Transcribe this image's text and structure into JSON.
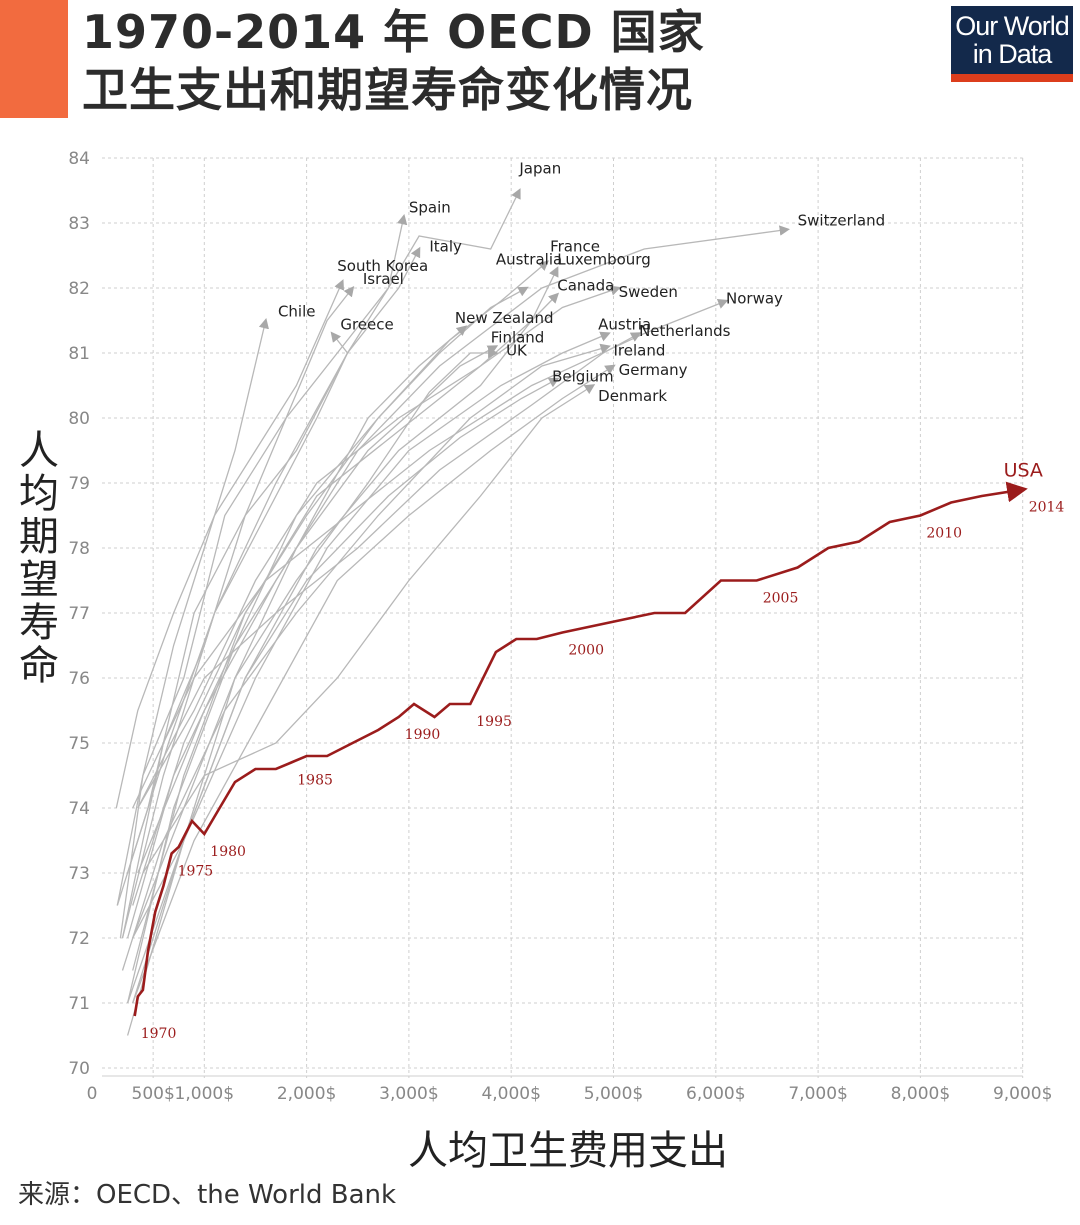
{
  "header": {
    "title_line1": "1970-2014 年 OECD 国家",
    "title_line2": "卫生支出和期望寿命变化情况",
    "logo_line1": "Our World",
    "logo_line2": "in Data"
  },
  "source": "来源：OECD、the World Bank",
  "colors": {
    "accent": "#f26b3f",
    "logo_bg": "#13294b",
    "logo_stripe": "#dc3d1c",
    "usa": "#9b1c1c",
    "others": "#b4b4b4"
  },
  "chart_data": {
    "type": "line",
    "xlabel": "人均卫生费用支出",
    "ylabel": "人均期望寿命",
    "xlim": [
      0,
      9000
    ],
    "ylim": [
      70,
      84
    ],
    "x_ticks": [
      "0",
      "500$",
      "1,000$",
      "2,000$",
      "3,000$",
      "4,000$",
      "5,000$",
      "6,000$",
      "7,000$",
      "8,000$",
      "9,000$"
    ],
    "x_tick_values": [
      0,
      500,
      1000,
      2000,
      3000,
      4000,
      5000,
      6000,
      7000,
      8000,
      9000
    ],
    "y_ticks": [
      70,
      71,
      72,
      73,
      74,
      75,
      76,
      77,
      78,
      79,
      80,
      81,
      82,
      83,
      84
    ],
    "grid": true,
    "series": [
      {
        "name": "USA",
        "highlight": true,
        "points": [
          [
            320,
            70.8
          ],
          [
            350,
            71.1
          ],
          [
            400,
            71.2
          ],
          [
            450,
            71.8
          ],
          [
            520,
            72.4
          ],
          [
            600,
            72.8
          ],
          [
            680,
            73.3
          ],
          [
            750,
            73.4
          ],
          [
            880,
            73.8
          ],
          [
            1000,
            73.6
          ],
          [
            1150,
            74.0
          ],
          [
            1300,
            74.4
          ],
          [
            1500,
            74.6
          ],
          [
            1700,
            74.6
          ],
          [
            1850,
            74.7
          ],
          [
            2000,
            74.8
          ],
          [
            2200,
            74.8
          ],
          [
            2450,
            75.0
          ],
          [
            2700,
            75.2
          ],
          [
            2900,
            75.4
          ],
          [
            3050,
            75.6
          ],
          [
            3250,
            75.4
          ],
          [
            3400,
            75.6
          ],
          [
            3600,
            75.6
          ],
          [
            3850,
            76.4
          ],
          [
            4050,
            76.6
          ],
          [
            4250,
            76.6
          ],
          [
            4500,
            76.7
          ],
          [
            4800,
            76.8
          ],
          [
            5100,
            76.9
          ],
          [
            5400,
            77.0
          ],
          [
            5700,
            77.0
          ],
          [
            6050,
            77.5
          ],
          [
            6400,
            77.5
          ],
          [
            6800,
            77.7
          ],
          [
            7100,
            78.0
          ],
          [
            7400,
            78.1
          ],
          [
            7700,
            78.4
          ],
          [
            8000,
            78.5
          ],
          [
            8300,
            78.7
          ],
          [
            8600,
            78.8
          ],
          [
            9000,
            78.9
          ]
        ],
        "year_labels": [
          {
            "text": "1970",
            "x": 320,
            "y": 70.8
          },
          {
            "text": "1975",
            "x": 680,
            "y": 73.3
          },
          {
            "text": "1980",
            "x": 1000,
            "y": 73.6
          },
          {
            "text": "1985",
            "x": 1850,
            "y": 74.7
          },
          {
            "text": "1990",
            "x": 2900,
            "y": 75.4
          },
          {
            "text": "1995",
            "x": 3600,
            "y": 75.6
          },
          {
            "text": "2000",
            "x": 4500,
            "y": 76.7
          },
          {
            "text": "2005",
            "x": 6400,
            "y": 77.5
          },
          {
            "text": "2010",
            "x": 8000,
            "y": 78.5
          },
          {
            "text": "2014",
            "x": 9000,
            "y": 78.9
          }
        ]
      },
      {
        "name": "Japan",
        "points": [
          [
            180,
            72.0
          ],
          [
            400,
            74.5
          ],
          [
            800,
            76.0
          ],
          [
            1200,
            78.5
          ],
          [
            1800,
            80.0
          ],
          [
            2300,
            81.0
          ],
          [
            2800,
            82.0
          ],
          [
            3100,
            82.8
          ],
          [
            3800,
            82.6
          ],
          [
            4080,
            83.5
          ]
        ]
      },
      {
        "name": "Spain",
        "points": [
          [
            150,
            72.5
          ],
          [
            450,
            74.0
          ],
          [
            900,
            77.0
          ],
          [
            1400,
            78.5
          ],
          [
            1900,
            79.5
          ],
          [
            2400,
            81.0
          ],
          [
            2800,
            82.0
          ],
          [
            2950,
            83.1
          ]
        ]
      },
      {
        "name": "Italy",
        "points": [
          [
            200,
            72.0
          ],
          [
            600,
            74.5
          ],
          [
            1100,
            77.0
          ],
          [
            1700,
            79.0
          ],
          [
            2400,
            81.0
          ],
          [
            2900,
            82.0
          ],
          [
            3100,
            82.6
          ]
        ]
      },
      {
        "name": "South Korea",
        "points": [
          [
            140,
            74.0
          ],
          [
            350,
            75.5
          ],
          [
            700,
            77.0
          ],
          [
            1100,
            78.5
          ],
          [
            1500,
            79.5
          ],
          [
            1900,
            80.5
          ],
          [
            2350,
            82.1
          ]
        ]
      },
      {
        "name": "Israel",
        "points": [
          [
            200,
            72.0
          ],
          [
            600,
            75.0
          ],
          [
            1000,
            76.5
          ],
          [
            1400,
            78.5
          ],
          [
            1800,
            80.0
          ],
          [
            2200,
            81.5
          ],
          [
            2450,
            82.0
          ]
        ]
      },
      {
        "name": "Chile",
        "points": [
          [
            150,
            72.5
          ],
          [
            400,
            74.5
          ],
          [
            700,
            76.5
          ],
          [
            1000,
            78.0
          ],
          [
            1300,
            79.5
          ],
          [
            1600,
            81.5
          ]
        ]
      },
      {
        "name": "Greece",
        "points": [
          [
            250,
            73.0
          ],
          [
            650,
            75.0
          ],
          [
            1100,
            77.0
          ],
          [
            1600,
            78.5
          ],
          [
            2100,
            80.0
          ],
          [
            2400,
            81.0
          ],
          [
            2250,
            81.3
          ]
        ]
      },
      {
        "name": "Australia",
        "points": [
          [
            300,
            71.5
          ],
          [
            800,
            74.5
          ],
          [
            1400,
            77.0
          ],
          [
            2000,
            78.5
          ],
          [
            2700,
            80.0
          ],
          [
            3300,
            81.0
          ],
          [
            3800,
            81.7
          ],
          [
            4150,
            82.0
          ]
        ]
      },
      {
        "name": "France",
        "points": [
          [
            250,
            72.0
          ],
          [
            700,
            74.5
          ],
          [
            1300,
            76.5
          ],
          [
            1900,
            78.5
          ],
          [
            2700,
            80.0
          ],
          [
            3400,
            81.2
          ],
          [
            3900,
            81.8
          ],
          [
            4350,
            82.4
          ]
        ]
      },
      {
        "name": "Luxembourg",
        "points": [
          [
            300,
            71.0
          ],
          [
            800,
            73.5
          ],
          [
            1400,
            76.0
          ],
          [
            2100,
            78.0
          ],
          [
            2900,
            79.5
          ],
          [
            3700,
            80.5
          ],
          [
            4200,
            81.5
          ],
          [
            4450,
            82.3
          ]
        ]
      },
      {
        "name": "Canada",
        "points": [
          [
            300,
            72.5
          ],
          [
            800,
            75.0
          ],
          [
            1400,
            77.0
          ],
          [
            2100,
            78.8
          ],
          [
            2900,
            79.8
          ],
          [
            3700,
            80.8
          ],
          [
            4200,
            81.5
          ],
          [
            4450,
            81.9
          ]
        ]
      },
      {
        "name": "Sweden",
        "points": [
          [
            350,
            74.0
          ],
          [
            900,
            75.5
          ],
          [
            1500,
            77.5
          ],
          [
            2100,
            79.0
          ],
          [
            2900,
            80.0
          ],
          [
            3700,
            80.8
          ],
          [
            4500,
            81.7
          ],
          [
            5050,
            82.0
          ]
        ]
      },
      {
        "name": "Switzerland",
        "points": [
          [
            350,
            73.0
          ],
          [
            1000,
            75.5
          ],
          [
            1700,
            77.5
          ],
          [
            2500,
            79.5
          ],
          [
            3300,
            80.8
          ],
          [
            4300,
            82.0
          ],
          [
            5300,
            82.6
          ],
          [
            6700,
            82.9
          ]
        ]
      },
      {
        "name": "Norway",
        "points": [
          [
            300,
            74.0
          ],
          [
            900,
            76.0
          ],
          [
            1600,
            77.5
          ],
          [
            2400,
            78.5
          ],
          [
            3200,
            79.5
          ],
          [
            4200,
            80.5
          ],
          [
            5300,
            81.3
          ],
          [
            6100,
            81.8
          ]
        ]
      },
      {
        "name": "New Zealand",
        "points": [
          [
            300,
            72.0
          ],
          [
            800,
            73.5
          ],
          [
            1300,
            76.0
          ],
          [
            1900,
            78.0
          ],
          [
            2600,
            80.0
          ],
          [
            3100,
            80.8
          ],
          [
            3550,
            81.4
          ]
        ]
      },
      {
        "name": "Finland",
        "points": [
          [
            250,
            71.0
          ],
          [
            700,
            74.0
          ],
          [
            1300,
            76.5
          ],
          [
            1900,
            78.0
          ],
          [
            2600,
            79.5
          ],
          [
            3100,
            80.2
          ],
          [
            3500,
            80.8
          ],
          [
            3850,
            81.1
          ]
        ]
      },
      {
        "name": "UK",
        "points": [
          [
            300,
            72.0
          ],
          [
            800,
            74.0
          ],
          [
            1300,
            76.0
          ],
          [
            1900,
            77.5
          ],
          [
            2600,
            79.0
          ],
          [
            3200,
            80.4
          ],
          [
            3600,
            81.0
          ],
          [
            3850,
            81.0
          ]
        ]
      },
      {
        "name": "Austria",
        "points": [
          [
            250,
            70.5
          ],
          [
            800,
            73.5
          ],
          [
            1500,
            76.0
          ],
          [
            2200,
            78.0
          ],
          [
            3000,
            79.5
          ],
          [
            3900,
            80.5
          ],
          [
            4500,
            81.0
          ],
          [
            4950,
            81.3
          ]
        ]
      },
      {
        "name": "Netherlands",
        "points": [
          [
            350,
            74.0
          ],
          [
            1000,
            76.0
          ],
          [
            1700,
            77.0
          ],
          [
            2500,
            78.0
          ],
          [
            3300,
            79.2
          ],
          [
            4200,
            80.2
          ],
          [
            4900,
            81.0
          ],
          [
            5250,
            81.3
          ]
        ]
      },
      {
        "name": "Ireland",
        "points": [
          [
            200,
            71.5
          ],
          [
            600,
            73.5
          ],
          [
            1200,
            75.5
          ],
          [
            1900,
            77.0
          ],
          [
            2700,
            78.5
          ],
          [
            3600,
            80.0
          ],
          [
            4300,
            80.8
          ],
          [
            4950,
            81.1
          ]
        ]
      },
      {
        "name": "Germany",
        "points": [
          [
            300,
            71.0
          ],
          [
            900,
            73.5
          ],
          [
            1600,
            75.5
          ],
          [
            2300,
            77.5
          ],
          [
            3000,
            78.5
          ],
          [
            3800,
            79.5
          ],
          [
            4500,
            80.3
          ],
          [
            5000,
            80.8
          ]
        ]
      },
      {
        "name": "Belgium",
        "points": [
          [
            250,
            71.0
          ],
          [
            800,
            73.5
          ],
          [
            1400,
            76.0
          ],
          [
            2000,
            77.5
          ],
          [
            2800,
            78.8
          ],
          [
            3500,
            79.7
          ],
          [
            4100,
            80.3
          ],
          [
            4450,
            80.6
          ]
        ]
      },
      {
        "name": "Denmark",
        "points": [
          [
            400,
            73.0
          ],
          [
            1000,
            74.5
          ],
          [
            1700,
            75.0
          ],
          [
            2300,
            76.0
          ],
          [
            3000,
            77.5
          ],
          [
            3700,
            78.8
          ],
          [
            4300,
            80.0
          ],
          [
            4800,
            80.5
          ]
        ]
      }
    ],
    "country_labels": [
      {
        "name": "Japan",
        "x": 4080,
        "y": 83.7
      },
      {
        "name": "Spain",
        "x": 3000,
        "y": 83.1
      },
      {
        "name": "Italy",
        "x": 3200,
        "y": 82.5
      },
      {
        "name": "South Korea",
        "x": 2300,
        "y": 82.2
      },
      {
        "name": "Israel",
        "x": 2550,
        "y": 82.0
      },
      {
        "name": "Chile",
        "x": 1720,
        "y": 81.5
      },
      {
        "name": "Greece",
        "x": 2330,
        "y": 81.3
      },
      {
        "name": "Australia",
        "x": 3850,
        "y": 82.3
      },
      {
        "name": "France",
        "x": 4380,
        "y": 82.5
      },
      {
        "name": "Luxembourg",
        "x": 4450,
        "y": 82.3
      },
      {
        "name": "Canada",
        "x": 4450,
        "y": 81.9
      },
      {
        "name": "Sweden",
        "x": 5050,
        "y": 81.8
      },
      {
        "name": "Switzerland",
        "x": 6800,
        "y": 82.9
      },
      {
        "name": "Norway",
        "x": 6100,
        "y": 81.7
      },
      {
        "name": "New Zealand",
        "x": 3450,
        "y": 81.4
      },
      {
        "name": "Finland",
        "x": 3800,
        "y": 81.1
      },
      {
        "name": "UK",
        "x": 3950,
        "y": 80.9
      },
      {
        "name": "Austria",
        "x": 4850,
        "y": 81.3
      },
      {
        "name": "Netherlands",
        "x": 5250,
        "y": 81.2
      },
      {
        "name": "Ireland",
        "x": 5000,
        "y": 80.9
      },
      {
        "name": "Germany",
        "x": 5050,
        "y": 80.6
      },
      {
        "name": "Belgium",
        "x": 4400,
        "y": 80.5
      },
      {
        "name": "Denmark",
        "x": 4850,
        "y": 80.2
      },
      {
        "name": "USA",
        "x": 8950,
        "y": 79.1
      }
    ]
  }
}
